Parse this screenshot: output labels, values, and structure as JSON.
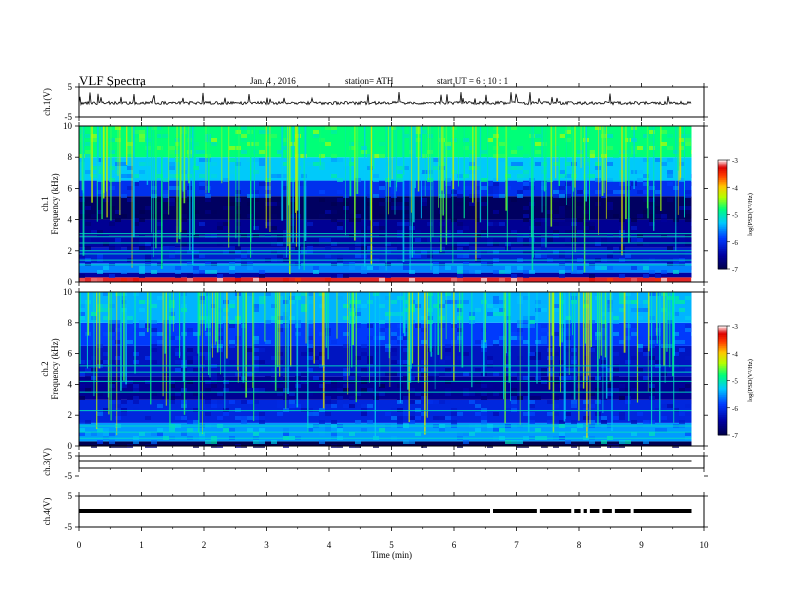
{
  "header": {
    "title": "VLF Spectra",
    "date": "Jan. 4 , 2016",
    "station": "station= ATH",
    "start": "start UT = 6 : 10 : 1"
  },
  "chart_data": [
    {
      "type": "line",
      "name": "ch1-waveform",
      "ylabel": "ch.1(V)",
      "ylim": [
        -5,
        5
      ],
      "yticks": [
        "5",
        "-5"
      ],
      "xlim": [
        0,
        10
      ],
      "level": 0,
      "data_end_min": 9.8
    },
    {
      "type": "heatmap",
      "name": "ch1-spectrogram",
      "ylabel": "ch.1\nFrequency (kHz)",
      "ylim": [
        0,
        10
      ],
      "yticks": [
        "0",
        "2",
        "4",
        "6",
        "8",
        "10"
      ],
      "xlim": [
        0,
        10
      ],
      "data_end_min": 9.8,
      "colorbar": {
        "label": "log(PSD(V²/Hz)",
        "range": [
          -7,
          -3
        ],
        "ticks": [
          "-3",
          "-4",
          "-5",
          "-6",
          "-7"
        ]
      },
      "bands": [
        {
          "f": [
            0,
            0.3
          ],
          "value": -3.2
        },
        {
          "f": [
            0.3,
            0.6
          ],
          "value": -6.5
        },
        {
          "f": [
            0.6,
            1.2
          ],
          "value": -5.6
        },
        {
          "f": [
            1.2,
            2.2
          ],
          "value": -6.2
        },
        {
          "f": [
            2.2,
            3.0
          ],
          "value": -6.5
        },
        {
          "f": [
            3.0,
            4.0
          ],
          "value": -6.6
        },
        {
          "f": [
            4.0,
            5.5
          ],
          "value": -6.9
        },
        {
          "f": [
            5.5,
            6.5
          ],
          "value": -6.0
        },
        {
          "f": [
            6.5,
            8.0
          ],
          "value": -5.3
        },
        {
          "f": [
            8.0,
            10.0
          ],
          "value": -4.8
        }
      ],
      "lines_khz": [
        1.1,
        1.4,
        1.8,
        2.0,
        2.5,
        2.9,
        3.1
      ]
    },
    {
      "type": "heatmap",
      "name": "ch2-spectrogram",
      "ylabel": "ch.2\nFrequency (kHz)",
      "ylim": [
        0,
        10
      ],
      "yticks": [
        "0",
        "2",
        "4",
        "6",
        "8",
        "10"
      ],
      "xlim": [
        0,
        10
      ],
      "data_end_min": 9.8,
      "colorbar": {
        "label": "log(PSD(V²/Hz)",
        "range": [
          -7,
          -3
        ],
        "ticks": [
          "-3",
          "-4",
          "-5",
          "-6",
          "-7"
        ]
      },
      "bands": [
        {
          "f": [
            0,
            0.3
          ],
          "value": -7.0
        },
        {
          "f": [
            0.3,
            1.5
          ],
          "value": -5.5
        },
        {
          "f": [
            1.5,
            3.0
          ],
          "value": -6.1
        },
        {
          "f": [
            3.0,
            4.5
          ],
          "value": -6.6
        },
        {
          "f": [
            4.5,
            6.5
          ],
          "value": -6.3
        },
        {
          "f": [
            6.5,
            8.0
          ],
          "value": -5.9
        },
        {
          "f": [
            8.0,
            10.0
          ],
          "value": -5.4
        }
      ],
      "lines_khz": [
        0.5,
        0.9,
        1.3,
        2.3,
        3.5,
        4.2,
        4.8,
        5.2
      ]
    },
    {
      "type": "line",
      "name": "ch3-waveform",
      "ylabel": "ch.3(V)",
      "ylim": [
        -5,
        5
      ],
      "yticks": [
        "5",
        "-5"
      ],
      "xlim": [
        0,
        10
      ],
      "level": 0,
      "data_end_min": 9.8
    },
    {
      "type": "line",
      "name": "ch4-waveform",
      "ylabel": "ch.4(V)",
      "ylim": [
        -5,
        5
      ],
      "yticks": [
        "5",
        "-5"
      ],
      "xlim": [
        0,
        10
      ],
      "level": 0,
      "data_end_min": 9.8,
      "gaps_min": [
        6.6,
        7.35,
        7.9,
        8.05,
        8.15,
        8.35,
        8.55,
        8.85
      ]
    }
  ],
  "xaxis": {
    "label": "Time (min)",
    "ticks": [
      "0",
      "1",
      "2",
      "3",
      "4",
      "5",
      "6",
      "7",
      "8",
      "9",
      "10"
    ],
    "range": [
      0,
      10
    ]
  }
}
